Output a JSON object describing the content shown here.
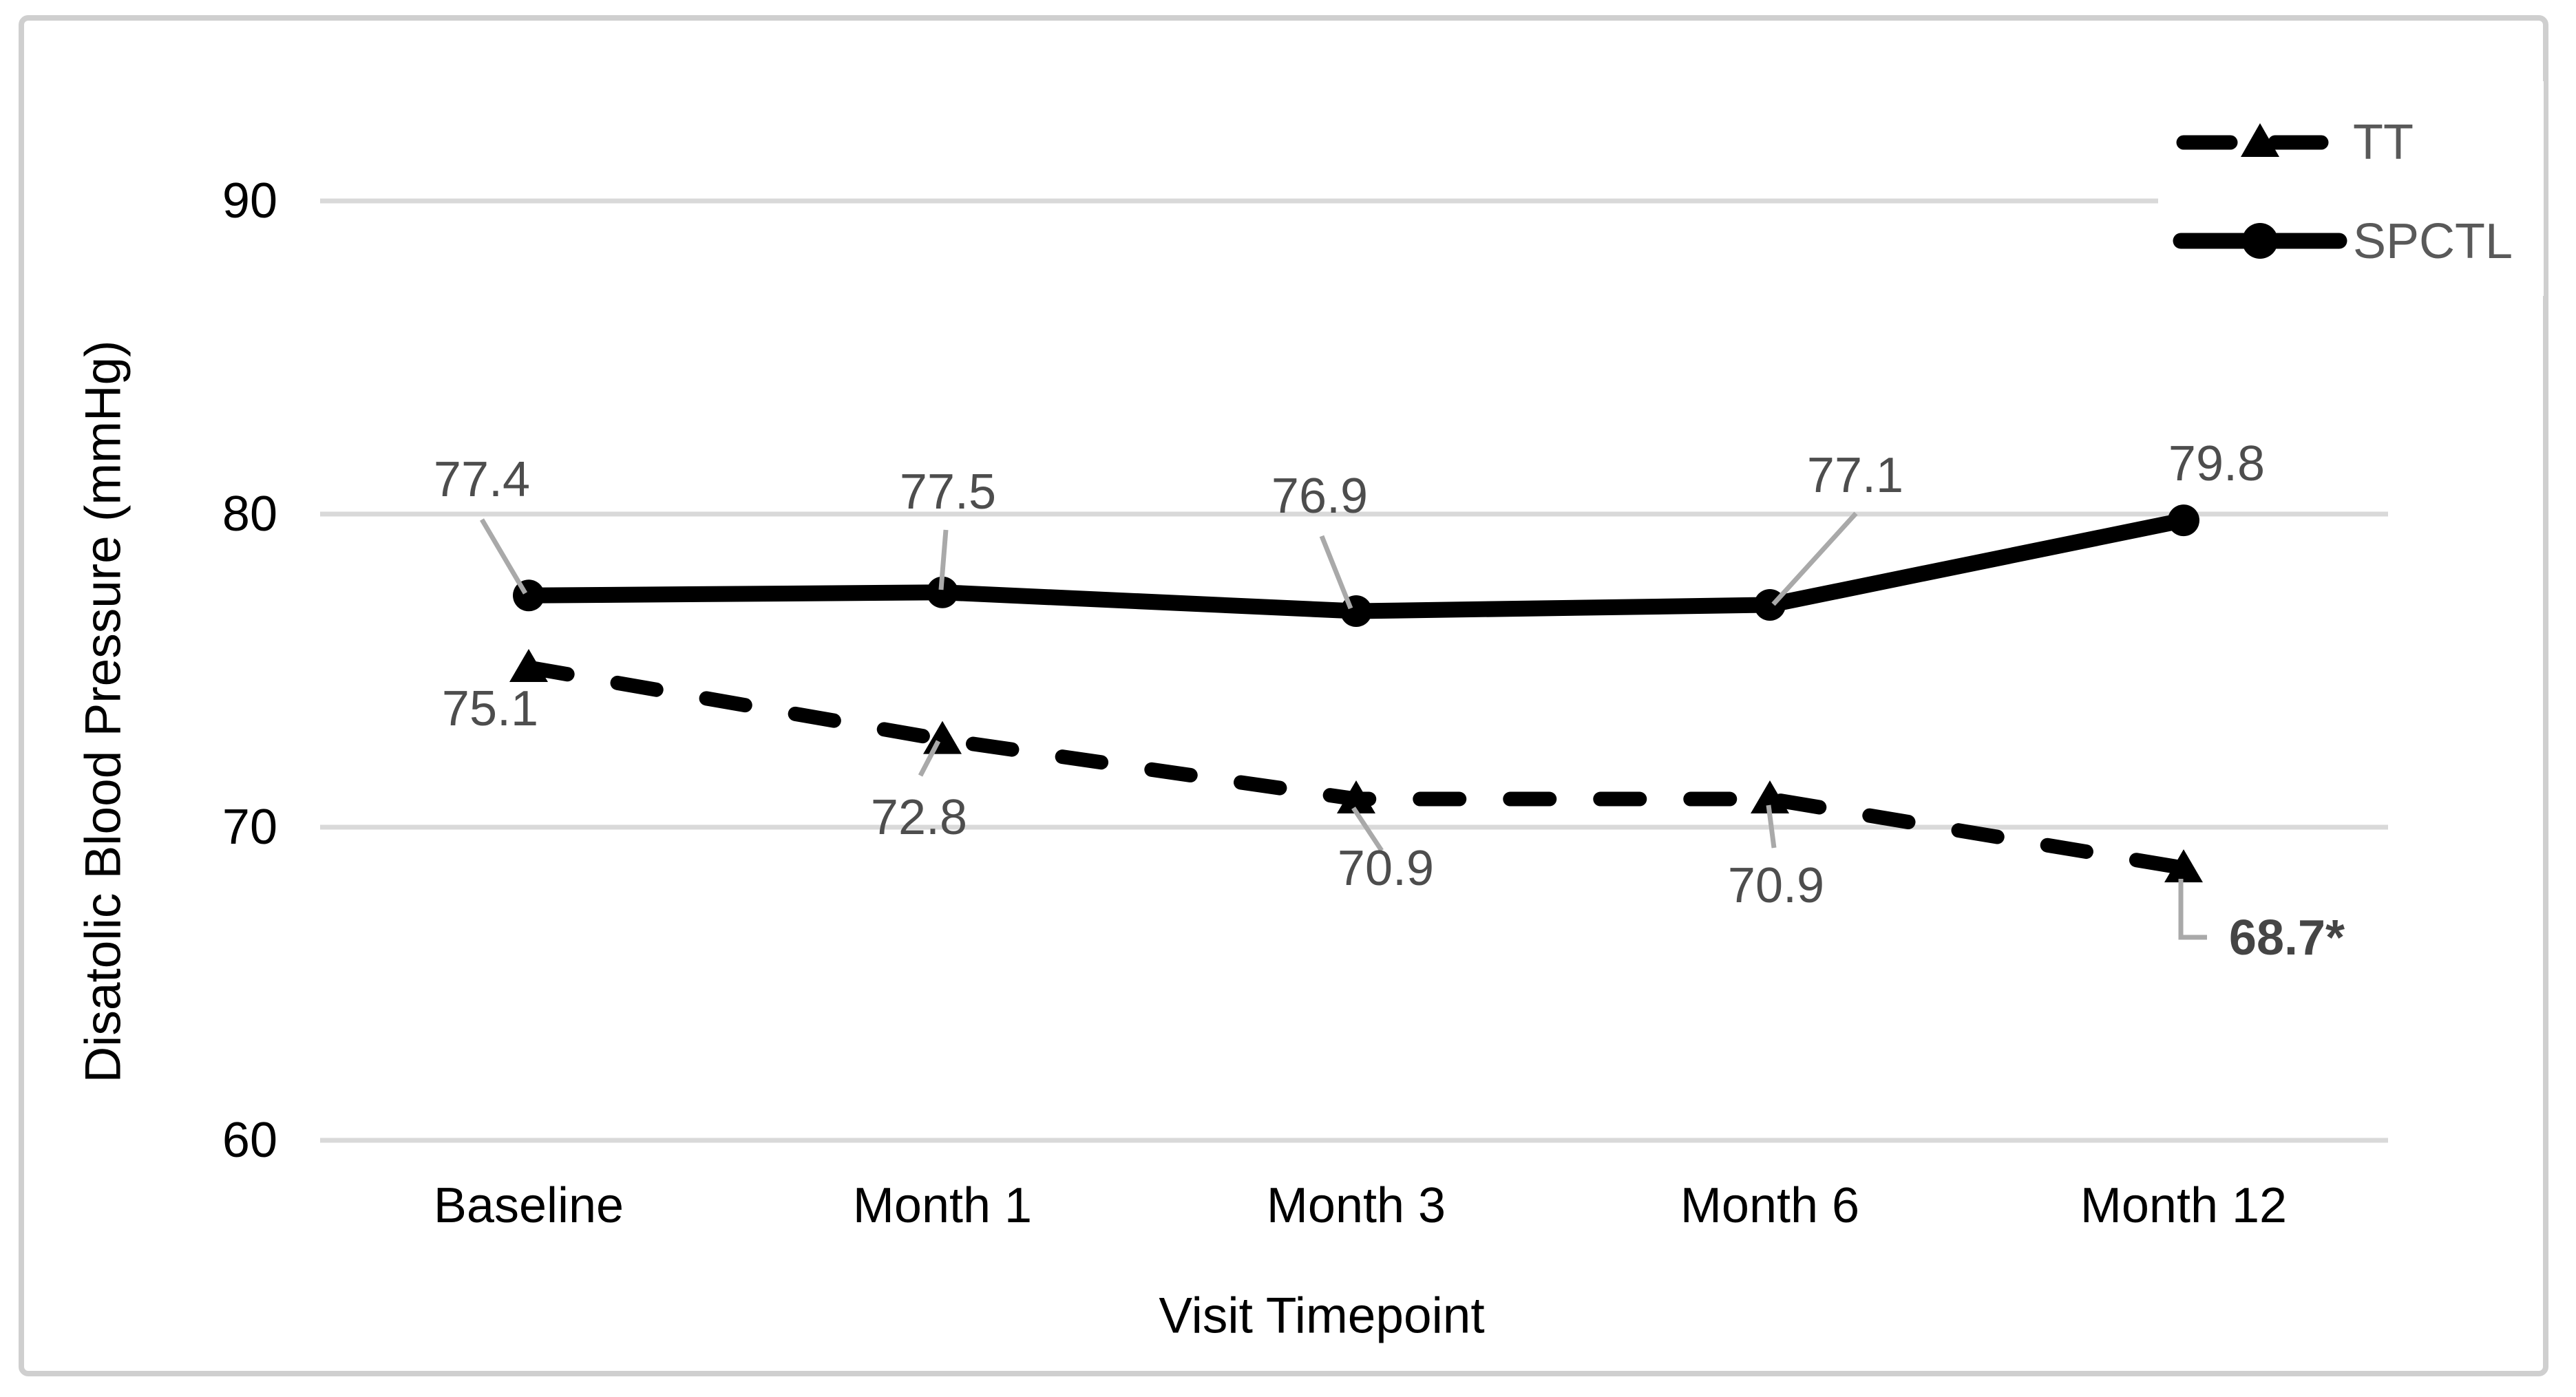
{
  "chart_data": {
    "type": "line",
    "title": "",
    "xlabel": "Visit Timepoint",
    "ylabel": "Disatolic Blood Pressure (mmHg)",
    "categories": [
      "Baseline",
      "Month 1",
      "Month 3",
      "Month 6",
      "Month 12"
    ],
    "yticks": [
      90,
      80,
      70,
      60
    ],
    "ylim": [
      60,
      90
    ],
    "grid": "horizontal-only",
    "legend_position": "top-right",
    "series": [
      {
        "name": "SPCTL",
        "line_style": "solid",
        "marker": "circle",
        "color": "#000000",
        "values": [
          77.4,
          77.5,
          76.9,
          77.1,
          79.8
        ],
        "point_labels": [
          "77.4",
          "77.5",
          "76.9",
          "77.1",
          "79.8"
        ]
      },
      {
        "name": "TT",
        "line_style": "dashed",
        "marker": "triangle",
        "color": "#000000",
        "values": [
          75.1,
          72.8,
          70.9,
          70.9,
          68.7
        ],
        "point_labels": [
          "75.1",
          "72.8",
          "70.9",
          "70.9",
          "68.7*"
        ]
      }
    ],
    "annotations": {
      "significance_label": "68.7*",
      "significance_note_style": "bold with elbow leader line"
    },
    "colors": {
      "series_line": "#000000",
      "data_label": "#4d4d4d",
      "significant_label": "#454545",
      "axis_text": "#000000",
      "legend_text": "#595959",
      "gridline": "#d9d9d9",
      "leader_line": "#a9a9a9",
      "figure_border": "#cfcfcf",
      "background": "#ffffff"
    }
  }
}
